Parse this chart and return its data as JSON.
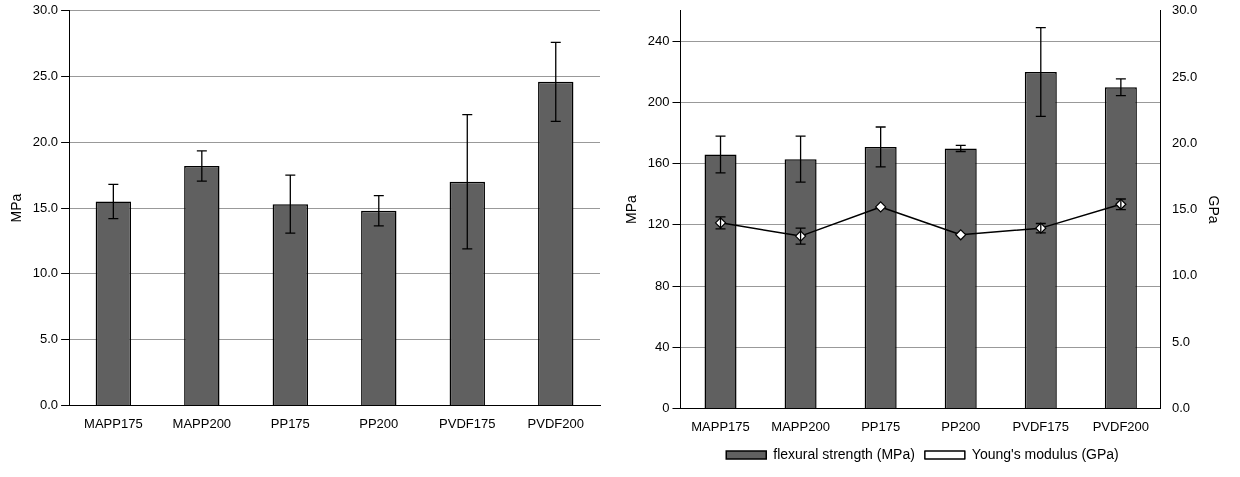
{
  "chart_data": [
    {
      "type": "bar",
      "ylabel": "MPa",
      "categories": [
        "MAPP175",
        "MAPP200",
        "PP175",
        "PP200",
        "PVDF175",
        "PVDF200"
      ],
      "values": [
        15.5,
        18.2,
        15.3,
        14.8,
        17.0,
        24.6
      ],
      "errors": [
        1.3,
        1.15,
        2.2,
        1.15,
        5.1,
        3.0
      ],
      "color": "#606060",
      "ylim": [
        0,
        30
      ],
      "yticks": [
        {
          "value": 0,
          "label": "0.0"
        },
        {
          "value": 5,
          "label": "5.0"
        },
        {
          "value": 10,
          "label": "10.0"
        },
        {
          "value": 15,
          "label": "15.0"
        },
        {
          "value": 20,
          "label": "20.0"
        },
        {
          "value": 25,
          "label": "25.0"
        },
        {
          "value": 30,
          "label": "30.0"
        }
      ],
      "grid": "y",
      "legend": false
    },
    {
      "type": "bar",
      "ylabel": "MPa",
      "y2label": "GPa",
      "categories": [
        "MAPP175",
        "MAPP200",
        "PP175",
        "PP200",
        "PVDF175",
        "PVDF200"
      ],
      "series": [
        {
          "name": "flexural strength (MPa)",
          "type": "bar",
          "color": "#606060",
          "values": [
            166,
            163,
            171,
            170,
            220,
            210
          ],
          "errors": [
            12,
            15,
            13,
            2,
            29,
            5.5
          ]
        },
        {
          "name": "Young's modulus (GPa)",
          "type": "line",
          "axis": "y2",
          "color": "#000000",
          "values": [
            14.0,
            13.0,
            15.2,
            13.1,
            13.6,
            15.4
          ],
          "errors": [
            0.45,
            0.6,
            null,
            null,
            0.35,
            0.4
          ]
        }
      ],
      "ylim": [
        0,
        260
      ],
      "yticks": [
        0,
        40,
        80,
        120,
        160,
        200,
        240
      ],
      "y2lim": [
        0,
        30
      ],
      "y2ticks": [
        {
          "value": 0,
          "label": "0.0"
        },
        {
          "value": 5,
          "label": "5.0"
        },
        {
          "value": 10,
          "label": "10.0"
        },
        {
          "value": 15,
          "label": "15.0"
        },
        {
          "value": 20,
          "label": "20.0"
        },
        {
          "value": 25,
          "label": "25.0"
        },
        {
          "value": 30,
          "label": "30.0"
        }
      ],
      "grid": "y",
      "legend": "bottom",
      "marker": "diamond"
    }
  ]
}
